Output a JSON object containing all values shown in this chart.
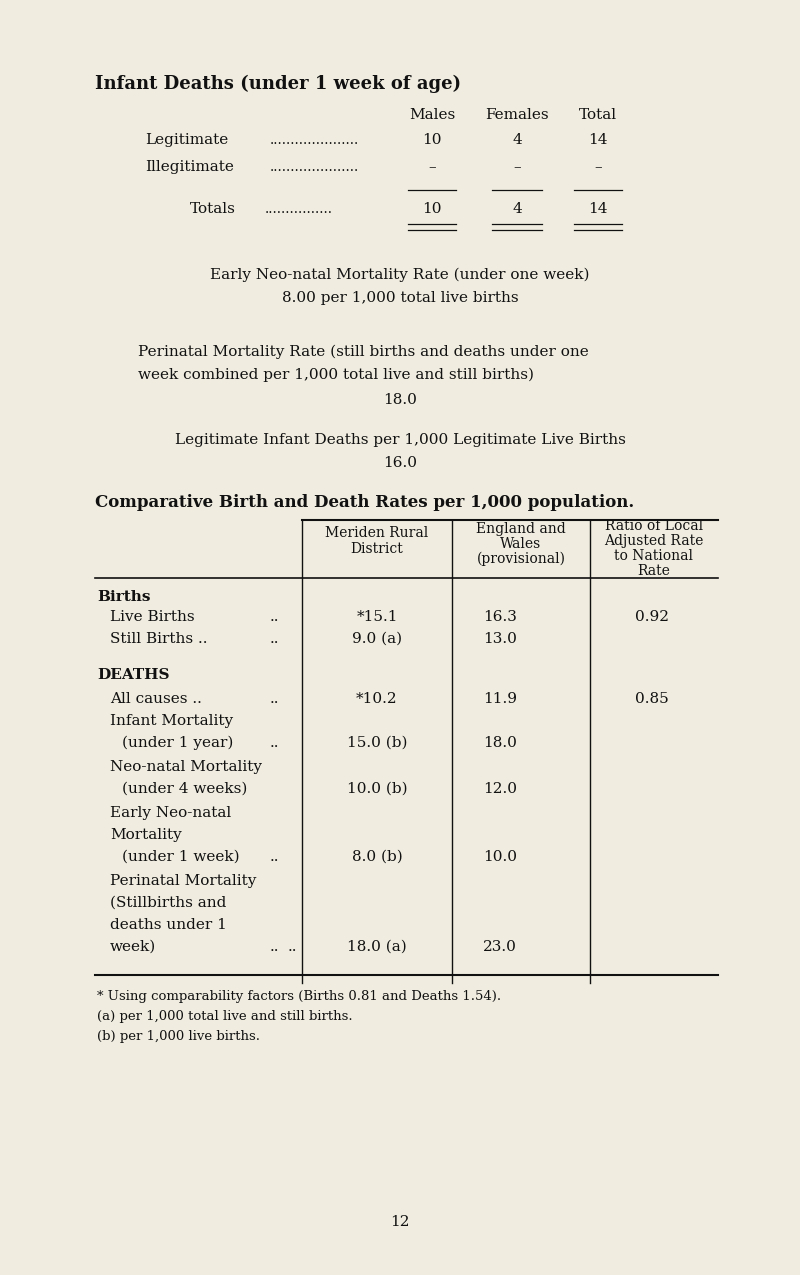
{
  "bg_color": "#f0ede0",
  "text_color": "#111111",
  "page_number": "12",
  "section1_title": "Infant Deaths (under 1 week of age)",
  "para1_line1": "Early Neo-natal Mortality Rate (under one week)",
  "para1_line2": "8.00 per 1,000 total live births",
  "para2_line1": "Perinatal Mortality Rate (still births and deaths under one",
  "para2_line2": "week combined per 1,000 total live and still births)",
  "para2_line3": "18.0",
  "para3_line1": "Legitimate Infant Deaths per 1,000 Legitimate Live Births",
  "para3_line2": "16.0",
  "section2_title": "Comparative Birth and Death Rates per 1,000 population.",
  "footnote1": "* Using comparability factors (Births 0.81 and Deaths 1.54).",
  "footnote2": "(a) per 1,000 total live and still births.",
  "footnote3": "(b) per 1,000 live births."
}
